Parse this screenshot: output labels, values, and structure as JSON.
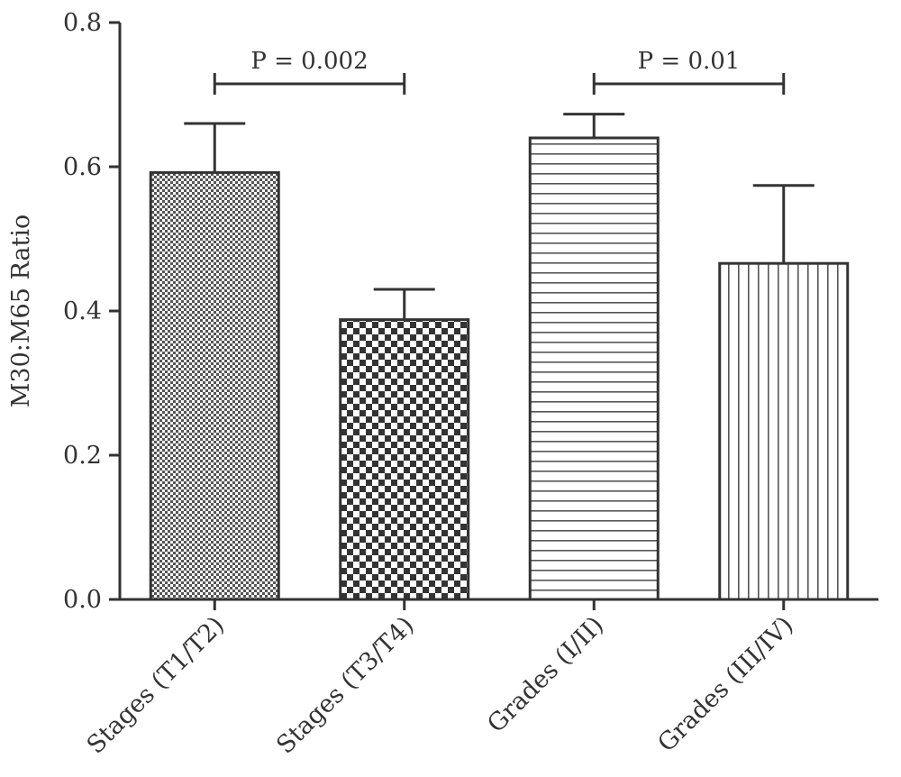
{
  "chart_data": {
    "type": "bar",
    "ylabel": "M30:M65 Ratio",
    "xlabel": "",
    "ylim": [
      0,
      0.8
    ],
    "yticks": [
      "0.0",
      "0.2",
      "0.4",
      "0.6",
      "0.8"
    ],
    "grid": false,
    "categories": [
      "Stages (T1/T2)",
      "Stages (T3/T4)",
      "Grades (I/II)",
      "Grades (III/IV)"
    ],
    "values": [
      0.592,
      0.388,
      0.64,
      0.466
    ],
    "errors": [
      0.068,
      0.042,
      0.033,
      0.108
    ],
    "patterns": [
      "fine-dots",
      "checkerboard",
      "horizontal-lines",
      "vertical-lines"
    ],
    "comparisons": [
      {
        "from": 0,
        "to": 1,
        "label": "P = 0.002"
      },
      {
        "from": 2,
        "to": 3,
        "label": "P = 0.01"
      }
    ],
    "colors": {
      "stroke": "#333333",
      "background": "#ffffff"
    }
  }
}
